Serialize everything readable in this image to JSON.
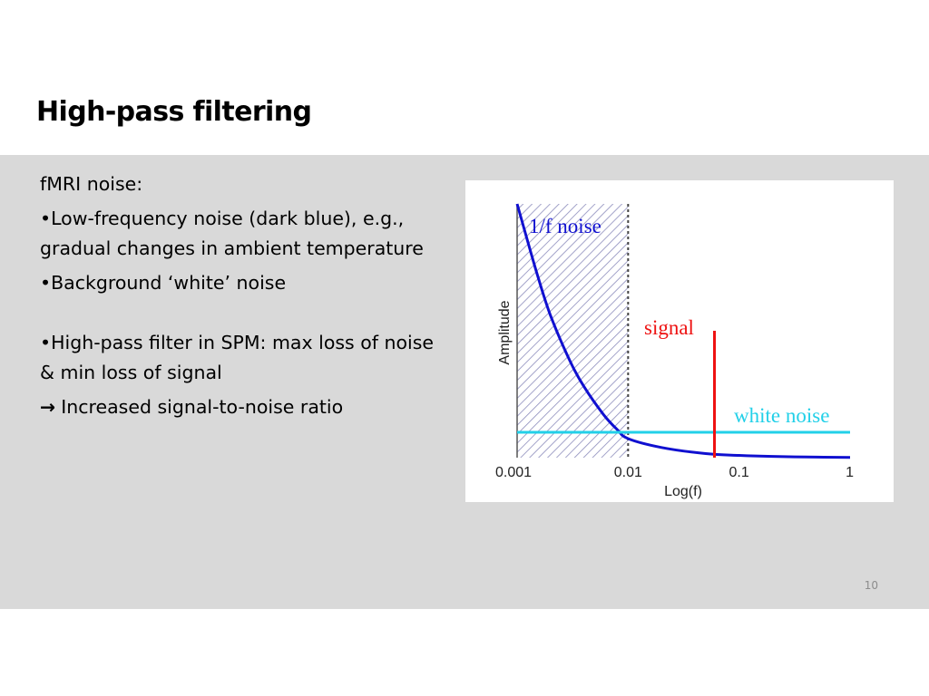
{
  "slide": {
    "title": "High-pass filtering",
    "page_number": "10"
  },
  "body_text": {
    "heading": "fMRI noise:",
    "bullet_low_freq": "•Low-frequency noise (dark blue), e.g., gradual changes in ambient temperature",
    "bullet_white": "•Background ‘white’ noise",
    "bullet_filter": "•High-pass filter in SPM: max loss of noise & min loss of signal",
    "arrow_icon": "right-arrow-icon",
    "arrow_glyph": "→",
    "conclusion": "Increased signal-to-noise ratio"
  },
  "colors": {
    "band_background": "#d9d9d9",
    "one_over_f_noise": "#1010d0",
    "signal": "#ee1111",
    "white_noise": "#22d0e8",
    "hatch": "#8c8cbc",
    "axis": "#555555"
  },
  "chart_data": {
    "type": "line",
    "xlabel": "Log(f)",
    "ylabel": "Amplitude",
    "x_scale": "log",
    "xlim": [
      0.001,
      1
    ],
    "x_ticks": [
      "0.001",
      "0.01",
      "0.1",
      "1"
    ],
    "y_ticks": [],
    "grid": false,
    "shaded_region": {
      "x_from": 0.001,
      "x_to": 0.01,
      "style": "diagonal hatch",
      "label": "1/f noise"
    },
    "annotations": [
      {
        "text": "1/f noise",
        "color": "#1010d0"
      },
      {
        "text": "signal",
        "color": "#ee1111"
      },
      {
        "text": "white noise",
        "color": "#22d0e8"
      }
    ],
    "series": [
      {
        "name": "1/f noise",
        "kind": "curve",
        "color": "#1010d0",
        "x": [
          0.001,
          0.0015,
          0.002,
          0.003,
          0.004,
          0.006,
          0.008,
          0.01,
          0.02,
          0.05,
          0.1,
          0.2,
          0.5,
          1
        ],
        "y": [
          1.0,
          0.73,
          0.56,
          0.38,
          0.28,
          0.17,
          0.11,
          0.075,
          0.04,
          0.016,
          0.009,
          0.005,
          0.002,
          0.001
        ]
      },
      {
        "name": "white noise",
        "kind": "hline",
        "color": "#22d0e8",
        "y": 0.1
      },
      {
        "name": "signal",
        "kind": "vline",
        "color": "#ee1111",
        "x": 0.06,
        "y_top": 0.5
      }
    ]
  }
}
